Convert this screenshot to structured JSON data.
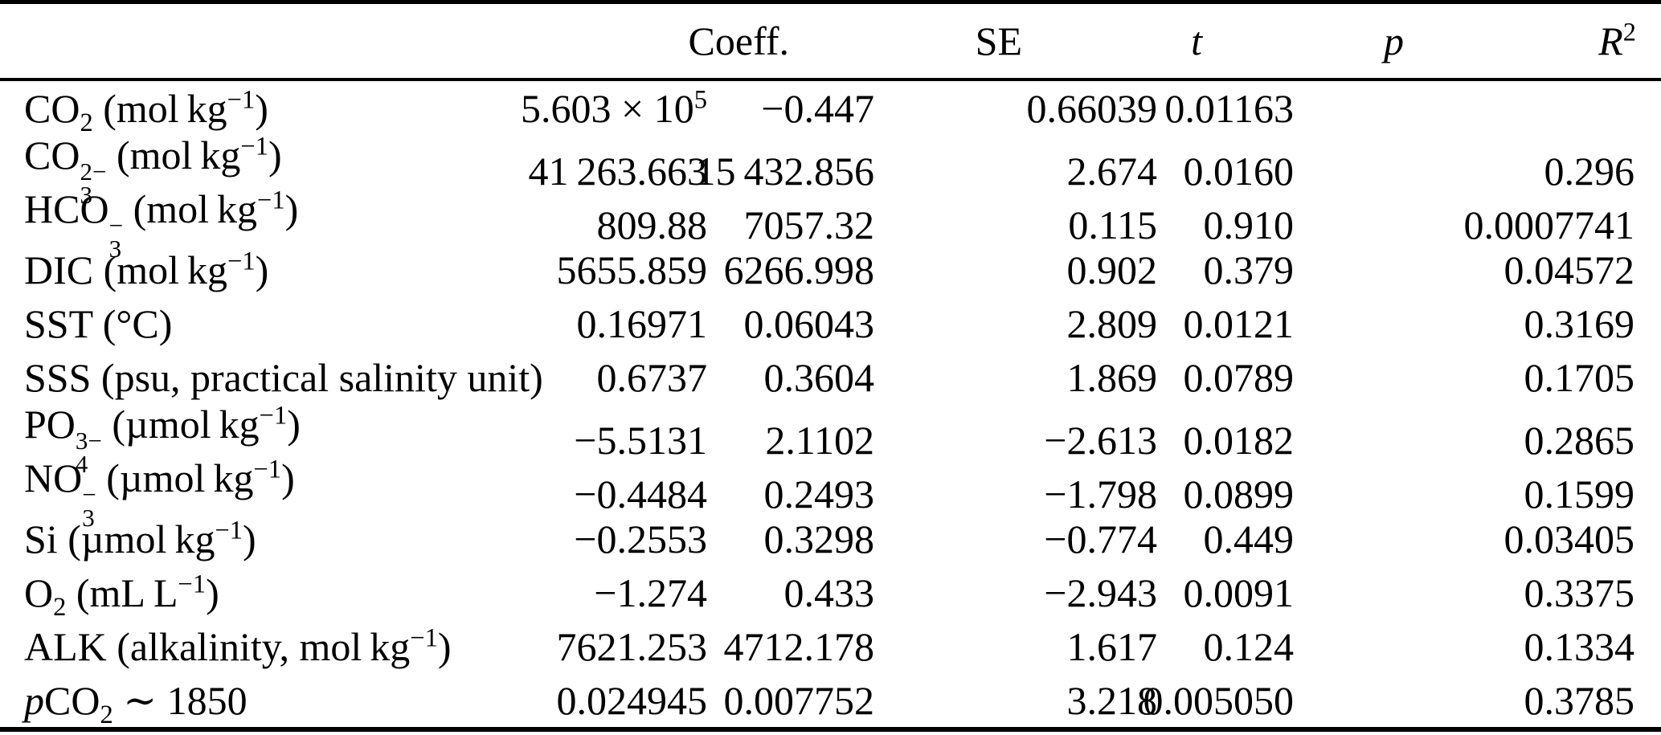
{
  "table": {
    "header": [
      {
        "key": "coeff",
        "label": [
          {
            "t": "Coeff."
          }
        ]
      },
      {
        "key": "se",
        "label": [
          {
            "t": "SE"
          }
        ]
      },
      {
        "key": "t",
        "label": [
          {
            "i": "t"
          }
        ]
      },
      {
        "key": "p",
        "label": [
          {
            "i": "p"
          }
        ]
      },
      {
        "key": "r2",
        "label": [
          {
            "i": "R"
          },
          {
            "sup": "2"
          }
        ]
      }
    ],
    "value_keys": [
      "coeff",
      "se",
      "t",
      "p",
      "r2"
    ],
    "rows": [
      {
        "label": [
          {
            "t": "CO"
          },
          {
            "sub": "2"
          },
          {
            "t": " (mol kg"
          },
          {
            "sup": "−1"
          },
          {
            "t": ")"
          }
        ],
        "values": [
          [
            {
              "t": "5.603 × 10"
            },
            {
              "sup": "5"
            }
          ],
          "−0.447",
          "0.66039",
          "0.01163",
          ""
        ]
      },
      {
        "label": [
          {
            "t": "CO"
          },
          {
            "stack": {
              "sup": "2−",
              "sub": "3"
            }
          },
          {
            "t": " (mol kg"
          },
          {
            "sup": "−1"
          },
          {
            "t": ")"
          }
        ],
        "values": [
          "41 263.663",
          "15 432.856",
          "2.674",
          "0.0160",
          "0.296"
        ]
      },
      {
        "label": [
          {
            "t": "HCO"
          },
          {
            "stack": {
              "sup": "−",
              "sub": "3"
            }
          },
          {
            "t": " (mol kg"
          },
          {
            "sup": "−1"
          },
          {
            "t": ")"
          }
        ],
        "values": [
          "809.88",
          "7057.32",
          "0.115",
          "0.910",
          "0.0007741"
        ]
      },
      {
        "label": [
          {
            "t": "DIC (mol kg"
          },
          {
            "sup": "−1"
          },
          {
            "t": ")"
          }
        ],
        "values": [
          "5655.859",
          "6266.998",
          "0.902",
          "0.379",
          "0.04572"
        ]
      },
      {
        "label": [
          {
            "t": "SST (°C)"
          }
        ],
        "values": [
          "0.16971",
          "0.06043",
          "2.809",
          "0.0121",
          "0.3169"
        ]
      },
      {
        "label": [
          {
            "t": "SSS (psu, practical salinity unit)"
          }
        ],
        "values": [
          "0.6737",
          "0.3604",
          "1.869",
          "0.0789",
          "0.1705"
        ]
      },
      {
        "label": [
          {
            "t": "PO"
          },
          {
            "stack": {
              "sup": "3−",
              "sub": "4"
            }
          },
          {
            "t": " (µmol kg"
          },
          {
            "sup": "−1"
          },
          {
            "t": ")"
          }
        ],
        "values": [
          "−5.5131",
          "2.1102",
          "−2.613",
          "0.0182",
          "0.2865"
        ]
      },
      {
        "label": [
          {
            "t": "NO"
          },
          {
            "stack": {
              "sup": "−",
              "sub": "3"
            }
          },
          {
            "t": " (µmol kg"
          },
          {
            "sup": "−1"
          },
          {
            "t": ")"
          }
        ],
        "values": [
          "−0.4484",
          "0.2493",
          "−1.798",
          "0.0899",
          "0.1599"
        ]
      },
      {
        "label": [
          {
            "t": "Si (µmol kg"
          },
          {
            "sup": "−1"
          },
          {
            "t": ")"
          }
        ],
        "values": [
          "−0.2553",
          "0.3298",
          "−0.774",
          "0.449",
          "0.03405"
        ]
      },
      {
        "label": [
          {
            "t": "O"
          },
          {
            "sub": "2"
          },
          {
            "t": " (mL L"
          },
          {
            "sup": "−1"
          },
          {
            "t": ")"
          }
        ],
        "values": [
          "−1.274",
          "0.433",
          "−2.943",
          "0.0091",
          "0.3375"
        ]
      },
      {
        "label": [
          {
            "t": "ALK (alkalinity, mol kg"
          },
          {
            "sup": "−1"
          },
          {
            "t": ")"
          }
        ],
        "values": [
          "7621.253",
          "4712.178",
          "1.617",
          "0.124",
          "0.1334"
        ]
      },
      {
        "label": [
          {
            "i": "p"
          },
          {
            "t": "CO"
          },
          {
            "sub": "2"
          },
          {
            "t": " ∼ 1850"
          }
        ],
        "values": [
          "0.024945",
          "0.007752",
          "3.218",
          "0.005050",
          "0.3785"
        ]
      }
    ]
  },
  "colors": {
    "rule": "#000000",
    "text": "#000000",
    "background": "#ffffff"
  }
}
